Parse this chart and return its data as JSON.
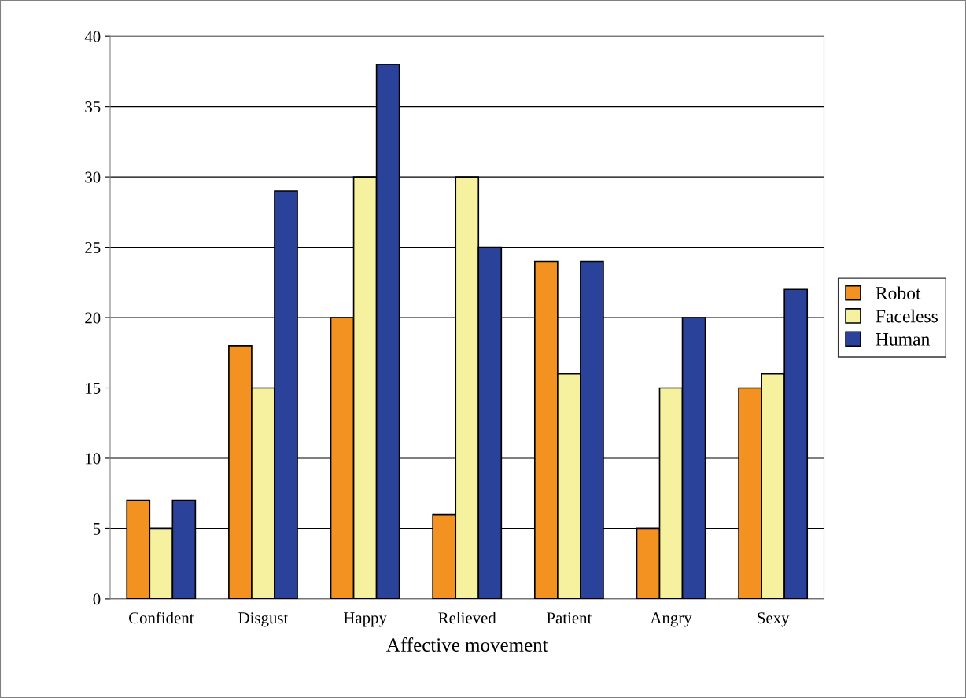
{
  "chart_data": {
    "type": "bar",
    "xlabel": "Affective movement",
    "categories": [
      "Confident",
      "Disgust",
      "Happy",
      "Relieved",
      "Patient",
      "Angry",
      "Sexy"
    ],
    "series": [
      {
        "name": "Robot",
        "color": "#f39220",
        "values": [
          7,
          18,
          20,
          6,
          24,
          5,
          15
        ]
      },
      {
        "name": "Faceless",
        "color": "#f5f19e",
        "values": [
          5,
          15,
          30,
          30,
          16,
          15,
          16
        ]
      },
      {
        "name": "Human",
        "color": "#2a429a",
        "values": [
          7,
          29,
          38,
          25,
          24,
          20,
          22
        ]
      }
    ],
    "ylim": [
      0,
      40
    ],
    "yticks": [
      0,
      5,
      10,
      15,
      20,
      25,
      30,
      35,
      40
    ],
    "grid": "y",
    "legend": "right"
  }
}
